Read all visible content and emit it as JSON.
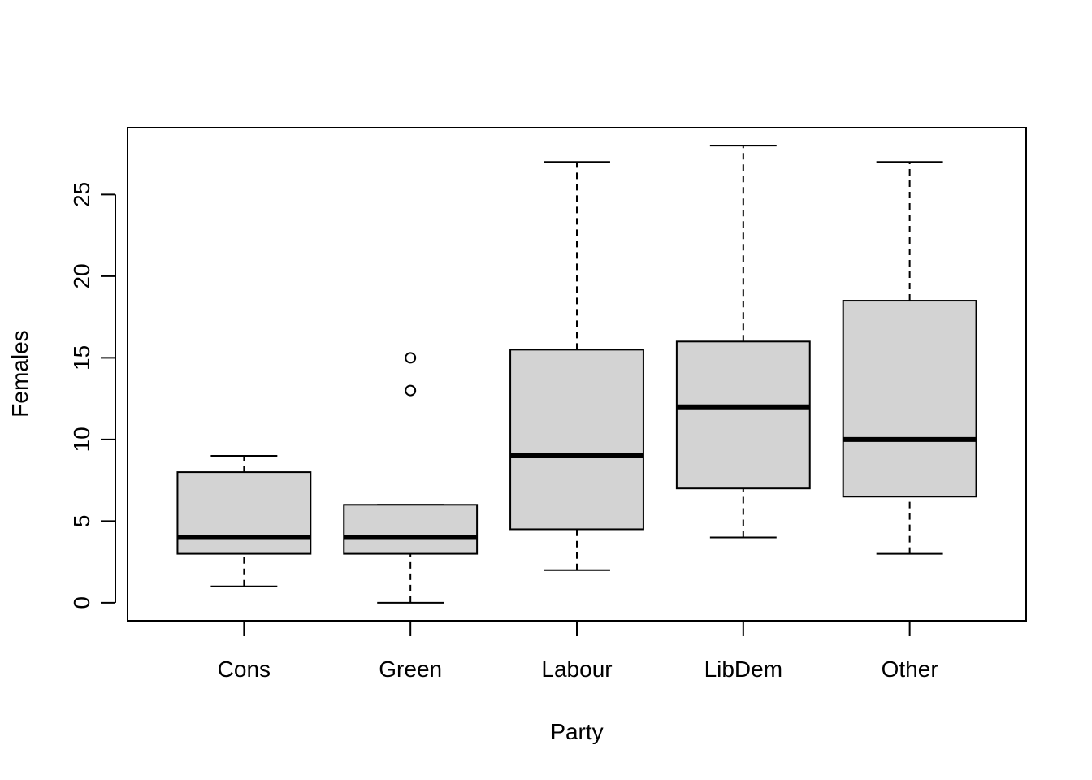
{
  "chart_data": {
    "type": "boxplot",
    "xlabel": "Party",
    "ylabel": "Females",
    "ylim": [
      -1.1,
      29.1
    ],
    "yticks": [
      0,
      5,
      10,
      15,
      20,
      25
    ],
    "grid": false,
    "legend": "none",
    "box_fill": "#d3d3d3",
    "categories": [
      "Cons",
      "Green",
      "Labour",
      "LibDem",
      "Other"
    ],
    "boxes": [
      {
        "category": "Cons",
        "whisker_low": 1,
        "q1": 3,
        "median": 4,
        "q3": 8,
        "whisker_high": 9,
        "outliers": []
      },
      {
        "category": "Green",
        "whisker_low": 0,
        "q1": 3,
        "median": 4,
        "q3": 6,
        "whisker_high": 6,
        "outliers": [
          13,
          15
        ]
      },
      {
        "category": "Labour",
        "whisker_low": 2,
        "q1": 4.5,
        "median": 9,
        "q3": 15.5,
        "whisker_high": 27,
        "outliers": []
      },
      {
        "category": "LibDem",
        "whisker_low": 4,
        "q1": 7,
        "median": 12,
        "q3": 16,
        "whisker_high": 28,
        "outliers": []
      },
      {
        "category": "Other",
        "whisker_low": 3,
        "q1": 6.5,
        "median": 10,
        "q3": 18.5,
        "whisker_high": 27,
        "outliers": []
      }
    ]
  }
}
